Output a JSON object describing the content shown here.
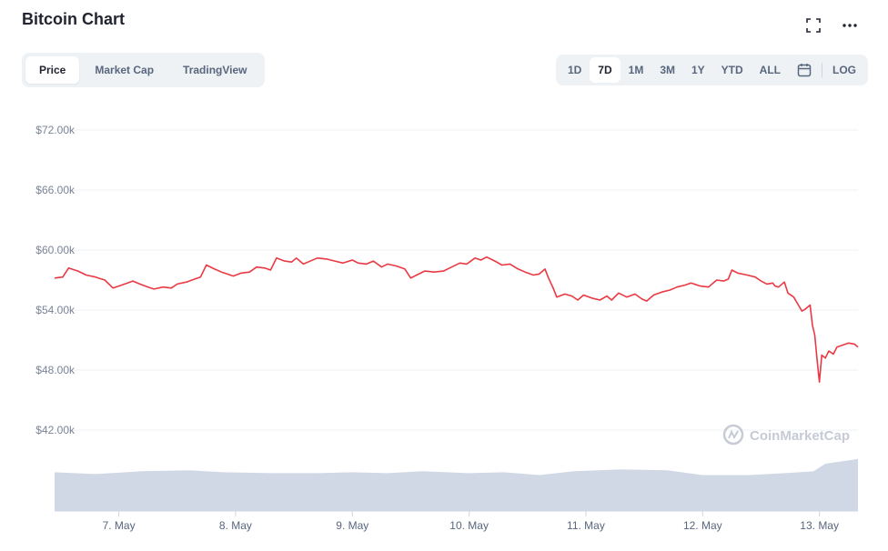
{
  "header": {
    "title": "Bitcoin Chart"
  },
  "icons": {
    "fullscreen": "fullscreen-icon",
    "more": "more-horizontal-icon",
    "calendar": "calendar-icon",
    "watermark": "coinmarketcap-logo-icon"
  },
  "tabs": [
    {
      "label": "Price",
      "active": true
    },
    {
      "label": "Market Cap",
      "active": false
    },
    {
      "label": "TradingView",
      "active": false
    }
  ],
  "ranges": [
    {
      "label": "1D",
      "active": false
    },
    {
      "label": "7D",
      "active": true
    },
    {
      "label": "1M",
      "active": false
    },
    {
      "label": "3M",
      "active": false
    },
    {
      "label": "1Y",
      "active": false
    },
    {
      "label": "YTD",
      "active": false
    },
    {
      "label": "ALL",
      "active": false
    }
  ],
  "log_label": "LOG",
  "watermark": "CoinMarketCap",
  "colors": {
    "line": "#ea3943",
    "volume": "#cfd6e4",
    "grid": "#eff2f5",
    "accent": "#222531"
  },
  "chart_data": {
    "type": "line",
    "yticks": [
      "$72.00k",
      "$66.00k",
      "$60.00k",
      "$54.00k",
      "$48.00k",
      "$42.00k"
    ],
    "ytick_values": [
      72000,
      66000,
      60000,
      54000,
      48000,
      42000
    ],
    "ylim": [
      40000,
      76000
    ],
    "xticks": [
      "7. May",
      "8. May",
      "9. May",
      "10. May",
      "11. May",
      "12. May",
      "13. May"
    ],
    "xlim_days": [
      6.45,
      13.33
    ],
    "grid": true,
    "series": [
      {
        "values": [
          [
            6.45,
            57200
          ],
          [
            6.52,
            57300
          ],
          [
            6.57,
            58200
          ],
          [
            6.65,
            57900
          ],
          [
            6.72,
            57500
          ],
          [
            6.8,
            57300
          ],
          [
            6.88,
            57000
          ],
          [
            6.95,
            56200
          ],
          [
            7.0,
            56400
          ],
          [
            7.05,
            56600
          ],
          [
            7.12,
            56900
          ],
          [
            7.18,
            56600
          ],
          [
            7.25,
            56300
          ],
          [
            7.3,
            56100
          ],
          [
            7.38,
            56300
          ],
          [
            7.45,
            56200
          ],
          [
            7.5,
            56600
          ],
          [
            7.58,
            56800
          ],
          [
            7.65,
            57100
          ],
          [
            7.7,
            57300
          ],
          [
            7.75,
            58500
          ],
          [
            7.82,
            58100
          ],
          [
            7.88,
            57800
          ],
          [
            7.93,
            57600
          ],
          [
            7.98,
            57400
          ],
          [
            8.05,
            57700
          ],
          [
            8.12,
            57800
          ],
          [
            8.18,
            58300
          ],
          [
            8.25,
            58200
          ],
          [
            8.3,
            58000
          ],
          [
            8.35,
            59200
          ],
          [
            8.42,
            58900
          ],
          [
            8.48,
            58800
          ],
          [
            8.52,
            59200
          ],
          [
            8.58,
            58600
          ],
          [
            8.62,
            58800
          ],
          [
            8.7,
            59200
          ],
          [
            8.78,
            59100
          ],
          [
            8.85,
            58900
          ],
          [
            8.92,
            58700
          ],
          [
            9.0,
            59000
          ],
          [
            9.05,
            58700
          ],
          [
            9.12,
            58600
          ],
          [
            9.18,
            58900
          ],
          [
            9.25,
            58300
          ],
          [
            9.3,
            58600
          ],
          [
            9.38,
            58400
          ],
          [
            9.45,
            58100
          ],
          [
            9.5,
            57200
          ],
          [
            9.55,
            57500
          ],
          [
            9.62,
            57900
          ],
          [
            9.7,
            57800
          ],
          [
            9.78,
            57900
          ],
          [
            9.85,
            58300
          ],
          [
            9.92,
            58700
          ],
          [
            9.98,
            58600
          ],
          [
            10.05,
            59200
          ],
          [
            10.1,
            59000
          ],
          [
            10.15,
            59300
          ],
          [
            10.22,
            58900
          ],
          [
            10.28,
            58500
          ],
          [
            10.35,
            58600
          ],
          [
            10.42,
            58100
          ],
          [
            10.48,
            57800
          ],
          [
            10.55,
            57500
          ],
          [
            10.6,
            57600
          ],
          [
            10.65,
            58100
          ],
          [
            10.68,
            57200
          ],
          [
            10.72,
            56200
          ],
          [
            10.75,
            55300
          ],
          [
            10.82,
            55600
          ],
          [
            10.88,
            55400
          ],
          [
            10.93,
            55000
          ],
          [
            10.98,
            55500
          ],
          [
            11.05,
            55200
          ],
          [
            11.12,
            55000
          ],
          [
            11.18,
            55400
          ],
          [
            11.22,
            55000
          ],
          [
            11.28,
            55700
          ],
          [
            11.35,
            55300
          ],
          [
            11.42,
            55600
          ],
          [
            11.48,
            55100
          ],
          [
            11.52,
            54900
          ],
          [
            11.58,
            55500
          ],
          [
            11.65,
            55800
          ],
          [
            11.72,
            56000
          ],
          [
            11.78,
            56300
          ],
          [
            11.85,
            56500
          ],
          [
            11.9,
            56700
          ],
          [
            11.98,
            56400
          ],
          [
            12.05,
            56300
          ],
          [
            12.12,
            57000
          ],
          [
            12.18,
            56900
          ],
          [
            12.22,
            57100
          ],
          [
            12.25,
            58000
          ],
          [
            12.3,
            57700
          ],
          [
            12.38,
            57500
          ],
          [
            12.45,
            57300
          ],
          [
            12.5,
            56900
          ],
          [
            12.55,
            56600
          ],
          [
            12.6,
            56700
          ],
          [
            12.62,
            56400
          ],
          [
            12.65,
            56300
          ],
          [
            12.7,
            56800
          ],
          [
            12.73,
            55700
          ],
          [
            12.78,
            55300
          ],
          [
            12.82,
            54500
          ],
          [
            12.85,
            53900
          ],
          [
            12.88,
            54100
          ],
          [
            12.92,
            54500
          ],
          [
            12.94,
            52500
          ],
          [
            12.96,
            51500
          ],
          [
            12.98,
            49000
          ],
          [
            13.0,
            46800
          ],
          [
            13.02,
            49500
          ],
          [
            13.05,
            49200
          ],
          [
            13.08,
            49900
          ],
          [
            13.12,
            49600
          ],
          [
            13.15,
            50300
          ],
          [
            13.2,
            50500
          ],
          [
            13.25,
            50700
          ],
          [
            13.3,
            50600
          ],
          [
            13.33,
            50300
          ]
        ]
      }
    ],
    "volume": {
      "values": [
        [
          6.45,
          0.82
        ],
        [
          6.8,
          0.78
        ],
        [
          7.2,
          0.84
        ],
        [
          7.6,
          0.86
        ],
        [
          7.9,
          0.82
        ],
        [
          8.3,
          0.8
        ],
        [
          8.7,
          0.8
        ],
        [
          9.0,
          0.82
        ],
        [
          9.3,
          0.8
        ],
        [
          9.6,
          0.84
        ],
        [
          10.0,
          0.8
        ],
        [
          10.3,
          0.82
        ],
        [
          10.6,
          0.76
        ],
        [
          10.9,
          0.84
        ],
        [
          11.3,
          0.88
        ],
        [
          11.7,
          0.86
        ],
        [
          12.0,
          0.76
        ],
        [
          12.4,
          0.76
        ],
        [
          12.7,
          0.8
        ],
        [
          12.95,
          0.84
        ],
        [
          13.05,
          1.0
        ],
        [
          13.33,
          1.1
        ]
      ]
    }
  }
}
